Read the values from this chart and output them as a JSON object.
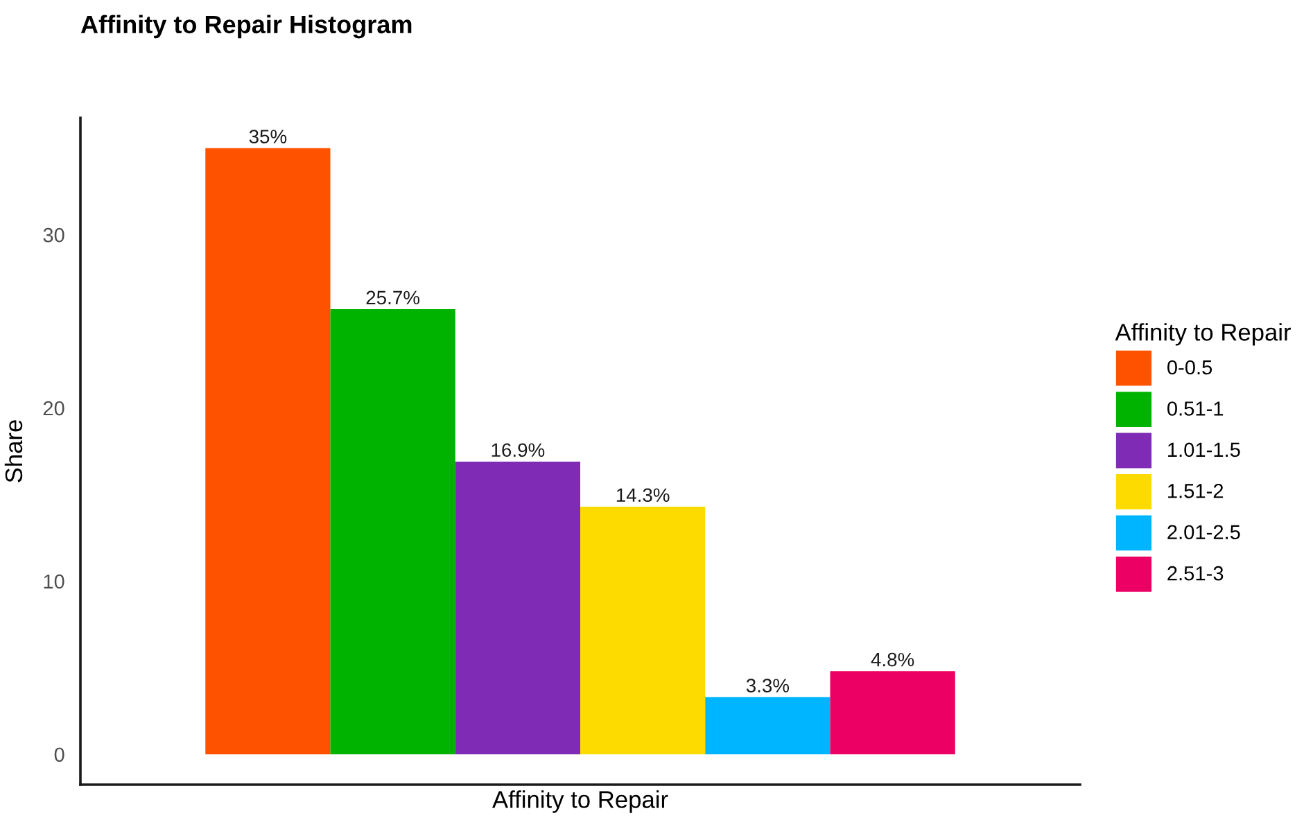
{
  "chart_data": {
    "type": "bar",
    "title": "Affinity to Repair Histogram",
    "xlabel": "Affinity to Repair",
    "ylabel": "Share",
    "legend_title": "Affinity to Repair",
    "stacked": true,
    "categories": [
      null,
      null,
      null,
      null,
      null,
      null
    ],
    "series": [
      {
        "name": "0-0.5",
        "color": "#ff5200",
        "values": [
          35,
          null,
          null,
          null,
          null,
          null
        ],
        "value_labels": [
          "35%",
          null,
          null,
          null,
          null,
          null
        ]
      },
      {
        "name": "0.51-1",
        "color": "#00b300",
        "values": [
          null,
          25.7,
          null,
          null,
          null,
          null
        ],
        "value_labels": [
          null,
          "25.7%",
          null,
          null,
          null,
          null
        ]
      },
      {
        "name": "1.01-1.5",
        "color": "#7f2bb5",
        "values": [
          null,
          null,
          16.9,
          null,
          null,
          null
        ],
        "value_labels": [
          null,
          null,
          "16.9%",
          null,
          null,
          null
        ]
      },
      {
        "name": "1.51-2",
        "color": "#fddb00",
        "values": [
          null,
          null,
          null,
          14.3,
          null,
          null
        ],
        "value_labels": [
          null,
          null,
          null,
          "14.3%",
          null,
          null
        ]
      },
      {
        "name": "2.01-2.5",
        "color": "#00b5ff",
        "values": [
          null,
          null,
          null,
          null,
          3.3,
          null
        ],
        "value_labels": [
          null,
          null,
          null,
          null,
          "3.3%",
          null
        ]
      },
      {
        "name": "2.51-3",
        "color": "#ec0064",
        "values": [
          null,
          null,
          null,
          null,
          null,
          4.8
        ],
        "value_labels": [
          null,
          null,
          null,
          null,
          null,
          "4.8%"
        ]
      }
    ],
    "ylim": [
      -1.75,
      36.75
    ],
    "yticks": [
      0,
      10,
      20,
      30
    ],
    "tick_labels": "y",
    "legend": "right",
    "grid": false
  }
}
